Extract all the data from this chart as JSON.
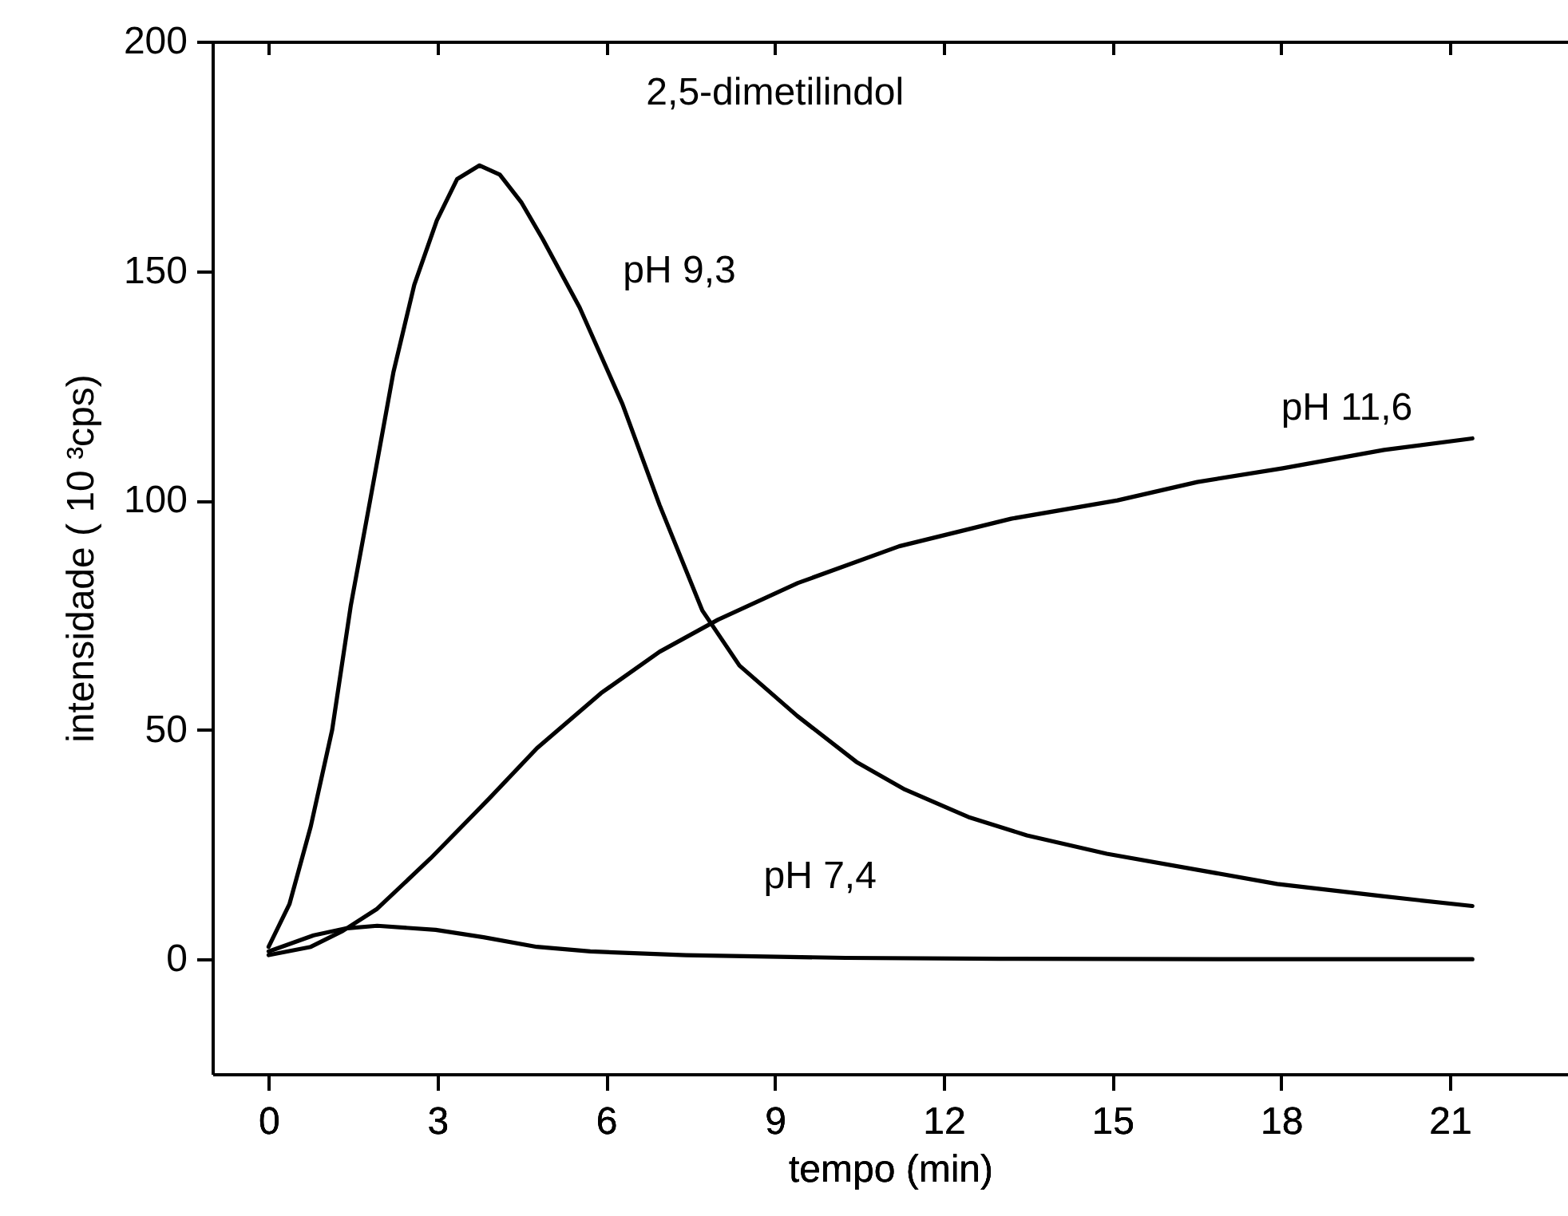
{
  "chart_data": {
    "type": "line",
    "title": "2,5-dimetilindol",
    "xlabel": "tempo (min)",
    "ylabel": "intensidade ( 10 ³cps)",
    "xlim": [
      -1,
      23.1
    ],
    "xticks": [
      0,
      3,
      6,
      9,
      12,
      15,
      18,
      21
    ],
    "ylim": [
      -25,
      200
    ],
    "yticks": [
      0,
      50,
      100,
      150,
      200
    ],
    "grid": false,
    "line_style": "solid",
    "series": [
      {
        "name": "pH 9,3",
        "color": "#000000",
        "x": [
          0,
          0.37,
          0.75,
          1.13,
          1.46,
          1.79,
          2.22,
          2.59,
          2.99,
          3.35,
          3.75,
          4.11,
          4.49,
          4.87,
          5.53,
          6.29,
          6.95,
          7.71,
          8.37,
          9.4,
          10.45,
          11.31,
          12.44,
          13.48,
          14.9,
          16.51,
          17.93,
          19.83,
          21.4
        ],
        "values": [
          2.7,
          12,
          29,
          50,
          77,
          99,
          128,
          147,
          161,
          170,
          173,
          171,
          165,
          157,
          142,
          121,
          99,
          76,
          64,
          53,
          43,
          37,
          31,
          27,
          23,
          19.5,
          16.4,
          13.7,
          11.6
        ]
      },
      {
        "name": "pH 11,6",
        "color": "#000000",
        "x": [
          0,
          0.75,
          1.32,
          1.93,
          2.88,
          3.92,
          4.77,
          5.91,
          6.95,
          7.99,
          9.41,
          11.21,
          13.2,
          15.09,
          16.51,
          18.03,
          19.83,
          21.4
        ],
        "values": [
          0.9,
          2.7,
          6.2,
          11,
          22,
          35,
          46,
          58,
          67,
          74,
          82,
          90,
          96,
          100,
          104,
          107,
          111,
          113.5
        ]
      },
      {
        "name": "pH 7,4",
        "color": "#000000",
        "x": [
          0,
          0.8,
          1.36,
          1.93,
          2.97,
          3.82,
          4.77,
          5.72,
          7.42,
          10.26,
          13,
          17,
          21.4
        ],
        "values": [
          1.7,
          5.2,
          6.7,
          7.3,
          6.4,
          4.8,
          2.7,
          1.7,
          0.9,
          0.3,
          0.1,
          0,
          0
        ]
      }
    ]
  }
}
